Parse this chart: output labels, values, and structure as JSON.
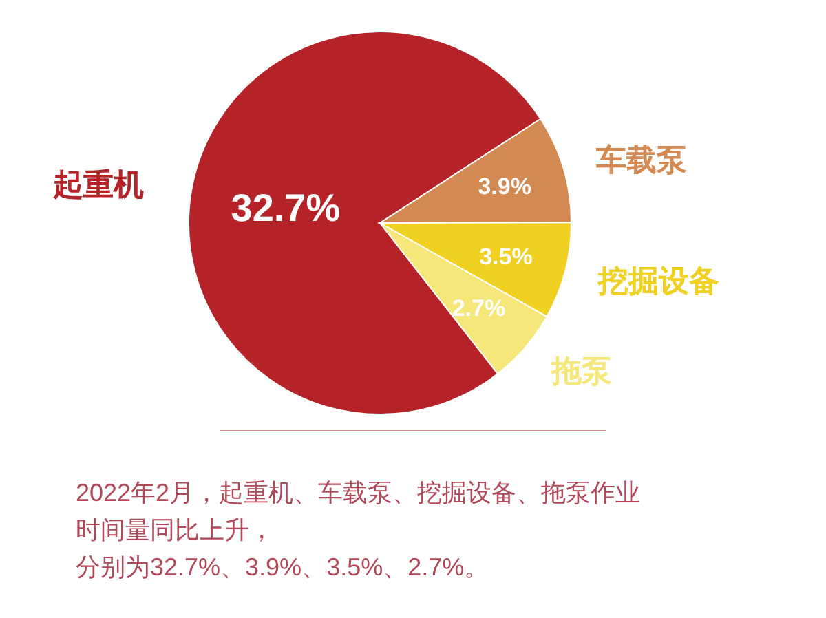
{
  "chart_data": {
    "type": "pie",
    "categories": [
      "起重机",
      "车载泵",
      "挖掘设备",
      "拖泵"
    ],
    "values": [
      32.7,
      3.9,
      3.5,
      2.7
    ],
    "value_labels": [
      "32.7%",
      "3.9%",
      "3.5%",
      "2.7%"
    ],
    "colors": [
      "#b52228",
      "#d38a52",
      "#f0d020",
      "#f5e77a"
    ],
    "annotations": [
      "2022年2月，起重机、车载泵、挖掘设备、拖泵作业",
      "时间量同比上升，",
      "分别为32.7%、3.9%、3.5%、2.7%。"
    ]
  }
}
